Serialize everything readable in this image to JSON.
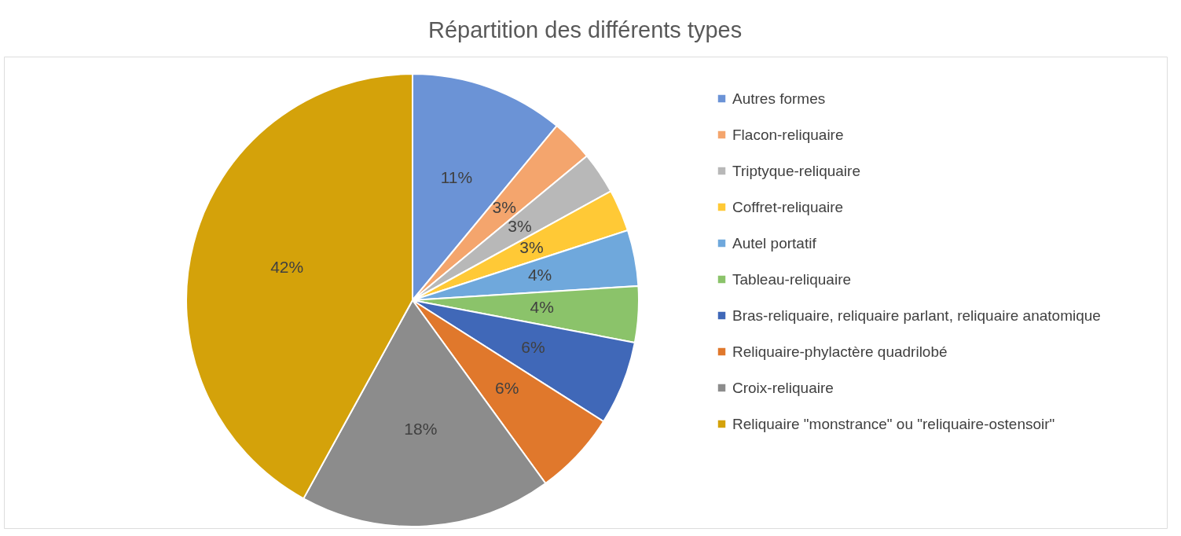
{
  "chart_data": {
    "type": "pie",
    "title": "Répartition des différents types",
    "categories": [
      "Autres formes",
      "Flacon-reliquaire",
      "Triptyque-reliquaire",
      "Coffret-reliquaire",
      "Autel portatif",
      "Tableau-reliquaire",
      "Bras-reliquaire, reliquaire parlant, reliquaire anatomique",
      "Reliquaire-phylactère quadrilobé",
      "Croix-reliquaire",
      "Reliquaire \"monstrance\" ou \"reliquaire-ostensoir\""
    ],
    "values": [
      11,
      3,
      3,
      3,
      4,
      4,
      6,
      6,
      18,
      42
    ],
    "colors": [
      "#6b93d6",
      "#f4a56d",
      "#b8b8b8",
      "#ffc936",
      "#6fa8dc",
      "#8bc36a",
      "#4068b8",
      "#e0782c",
      "#8c8c8c",
      "#d4a20a"
    ],
    "value_labels": [
      "11%",
      "3%",
      "3%",
      "3%",
      "4%",
      "4%",
      "6%",
      "6%",
      "18%",
      "42%"
    ],
    "legend": "right"
  }
}
